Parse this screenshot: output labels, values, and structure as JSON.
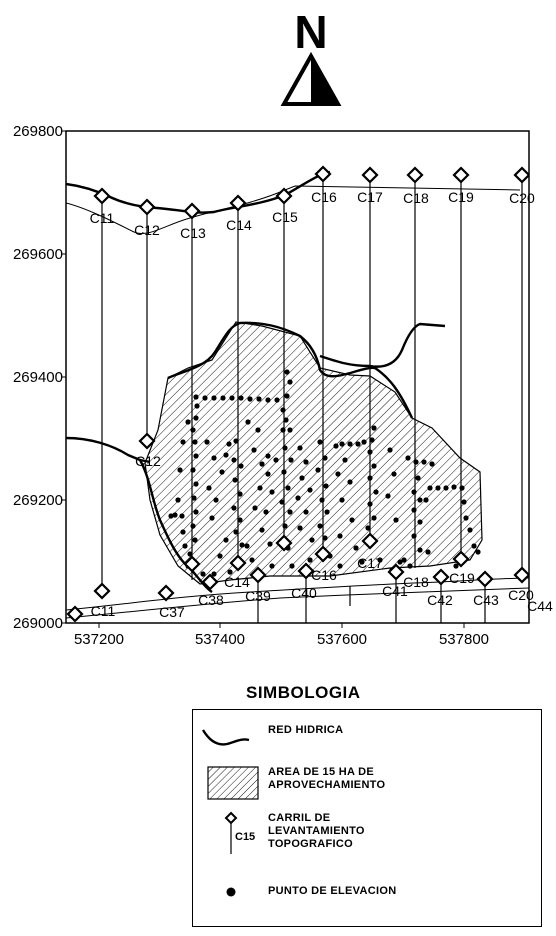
{
  "north_arrow": {
    "label": "N"
  },
  "map": {
    "y_axis_ticks": [
      "269800",
      "269600",
      "269400",
      "269200",
      "269000"
    ],
    "x_axis_ticks": [
      "537200",
      "537400",
      "537600",
      "537800"
    ],
    "top_lane_labels": [
      "C11",
      "C12",
      "C13",
      "C14",
      "C15",
      "C16",
      "C17",
      "C18",
      "C19",
      "C20"
    ],
    "bottom_lane_labels": [
      "C11",
      "C37",
      "C38",
      "C39",
      "C40",
      "C16",
      "C41",
      "C18",
      "C42",
      "C43",
      "C20",
      "C44"
    ],
    "middle_lane_labels": [
      "C12",
      "C14",
      "C17",
      "C19"
    ]
  },
  "legend": {
    "title": "SIMBOLOGIA",
    "items": [
      {
        "symbol": "red-hidrica-line-icon",
        "text": "RED HIDRICA"
      },
      {
        "symbol": "hatched-area-icon",
        "text": "AREA DE 15 HA DE APROVECHAMIENTO"
      },
      {
        "symbol": "survey-lane-marker-icon",
        "symbol_label": "C15",
        "text": "CARRIL DE LEVANTAMIENTO TOPOGRAFICO"
      },
      {
        "symbol": "elevation-point-icon",
        "text": "PUNTO DE ELEVACION"
      }
    ]
  }
}
